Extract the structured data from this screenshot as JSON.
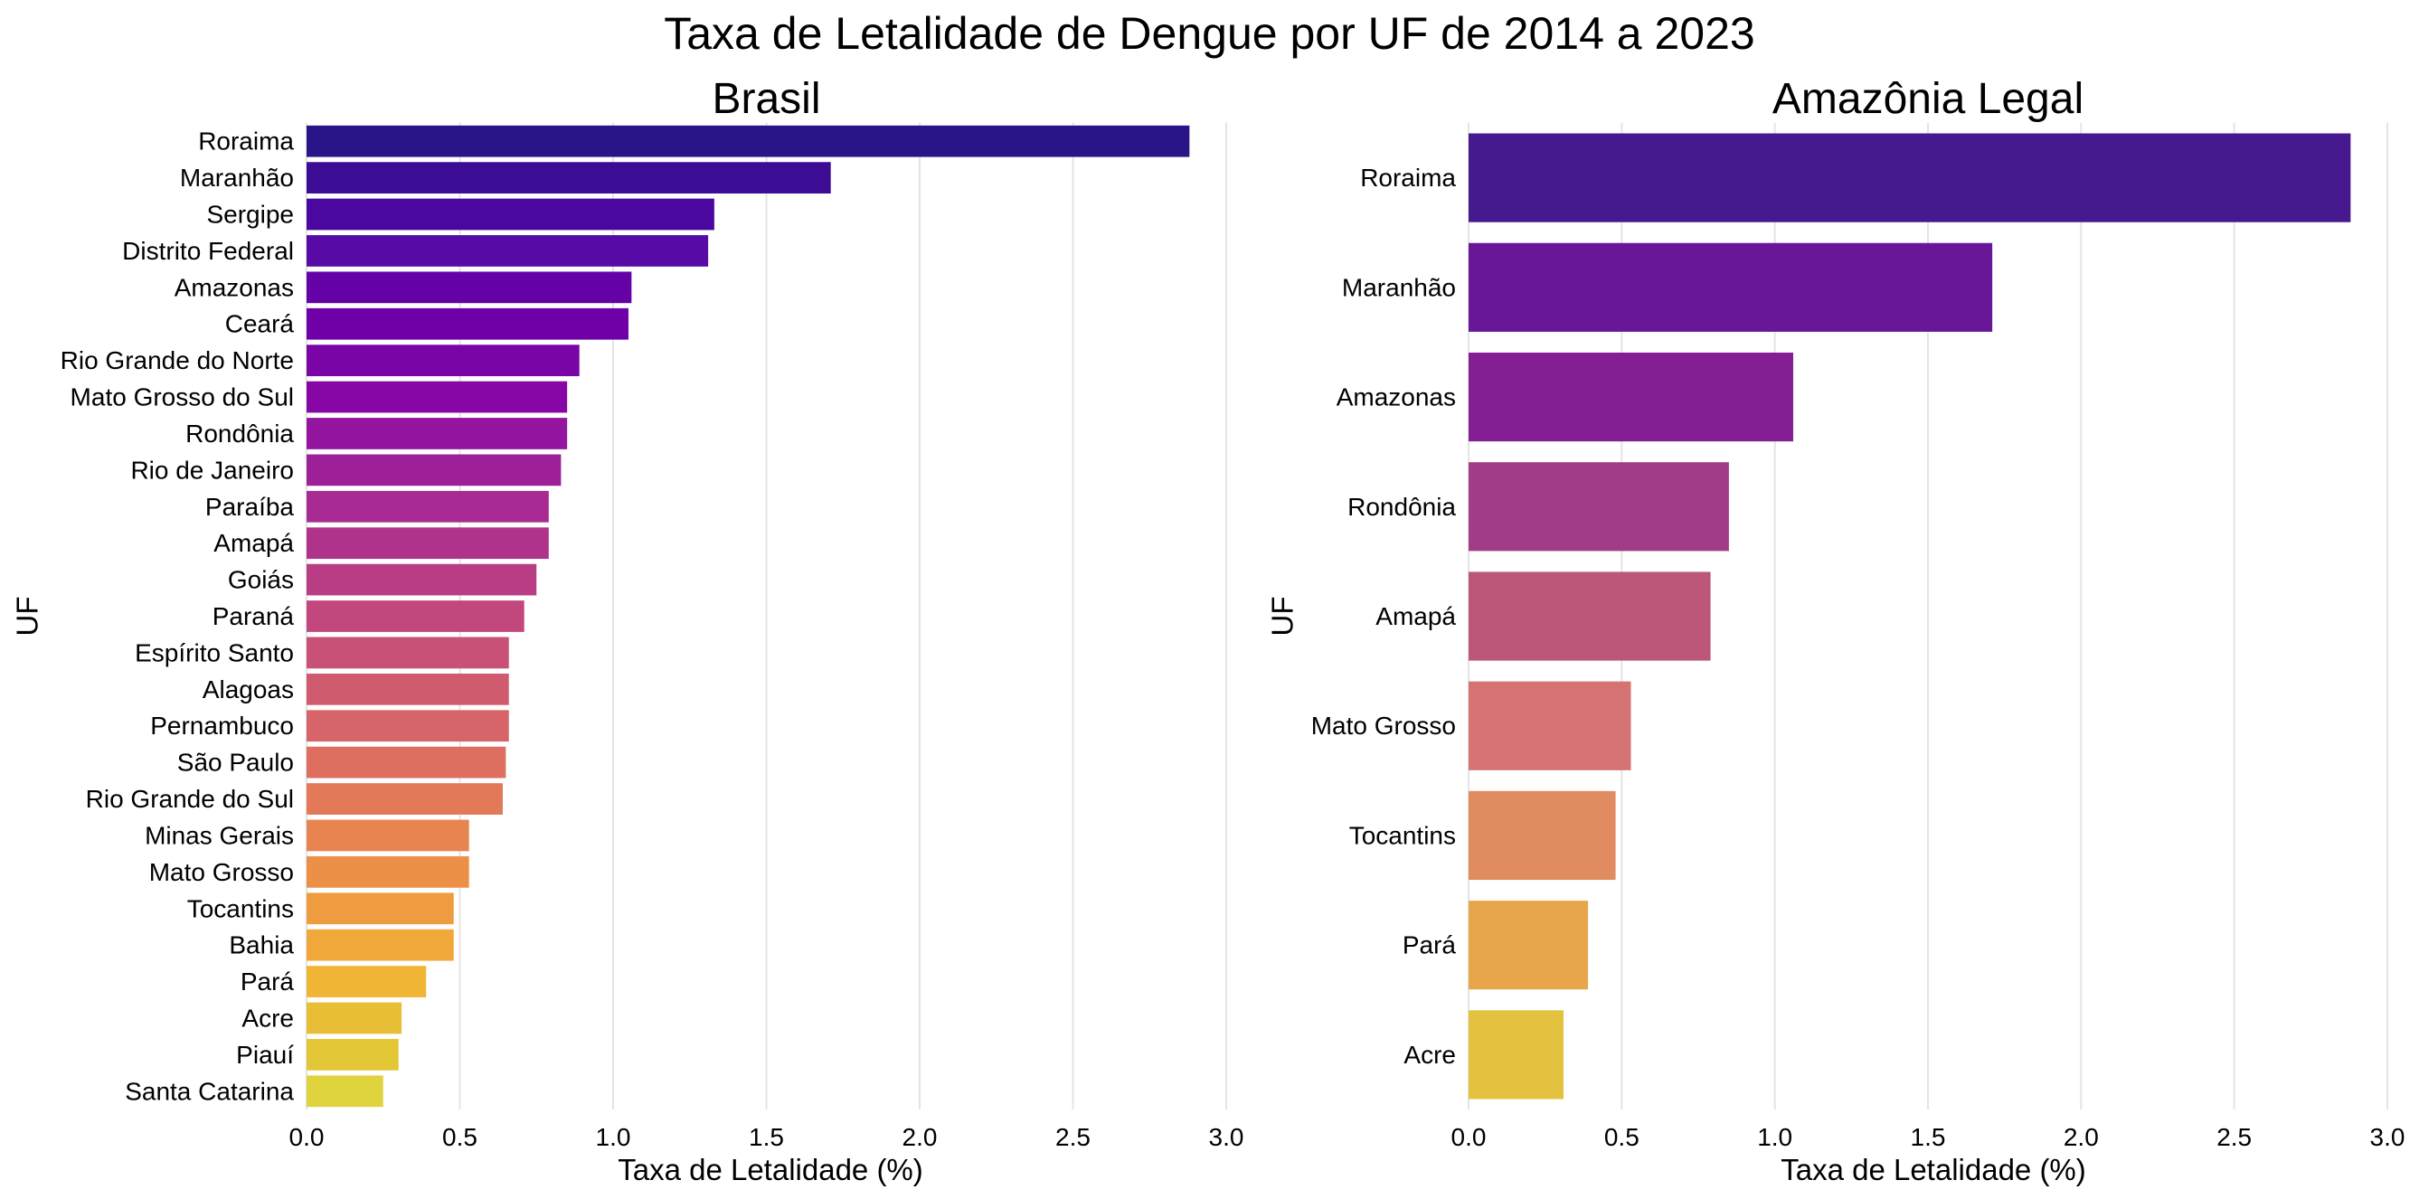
{
  "suptitle": "Taxa de Letalidade de Dengue por UF de 2014 a 2023",
  "chart_data": [
    {
      "type": "bar",
      "orientation": "horizontal",
      "title": "Brasil",
      "xlabel": "Taxa de Letalidade (%)",
      "ylabel": "UF",
      "xlim": [
        0,
        3.0
      ],
      "xticks": [
        "0.0",
        "0.5",
        "1.0",
        "1.5",
        "2.0",
        "2.5",
        "3.0"
      ],
      "grid": "vertical",
      "legend": "none",
      "palette": "plasma",
      "categories": [
        "Roraima",
        "Maranhão",
        "Sergipe",
        "Distrito Federal",
        "Amazonas",
        "Ceará",
        "Rio Grande do Norte",
        "Mato Grosso do Sul",
        "Rondônia",
        "Rio de Janeiro",
        "Paraíba",
        "Amapá",
        "Goiás",
        "Paraná",
        "Espírito Santo",
        "Alagoas",
        "Pernambuco",
        "São Paulo",
        "Rio Grande do Sul",
        "Minas Gerais",
        "Mato Grosso",
        "Tocantins",
        "Bahia",
        "Pará",
        "Acre",
        "Piauí",
        "Santa Catarina"
      ],
      "values": [
        2.88,
        1.71,
        1.33,
        1.31,
        1.06,
        1.05,
        0.89,
        0.85,
        0.85,
        0.83,
        0.79,
        0.79,
        0.75,
        0.71,
        0.66,
        0.66,
        0.66,
        0.65,
        0.64,
        0.53,
        0.53,
        0.48,
        0.48,
        0.39,
        0.31,
        0.3,
        0.25
      ],
      "colors": [
        "#2a1487",
        "#3c0c94",
        "#4a08a0",
        "#570aa6",
        "#6401a7",
        "#6f00a8",
        "#7b04a7",
        "#8707a6",
        "#9315a0",
        "#9d2099",
        "#a72b93",
        "#b0338b",
        "#b93d85",
        "#c2477d",
        "#c95176",
        "#d05b6f",
        "#d66468",
        "#dd6e60",
        "#e27958",
        "#e8844f",
        "#ec8f47",
        "#ef9c40",
        "#f0a83b",
        "#f1b536",
        "#e7be36",
        "#e3c736",
        "#dfd33e"
      ]
    },
    {
      "type": "bar",
      "orientation": "horizontal",
      "title": "Amazônia Legal",
      "xlabel": "Taxa de Letalidade (%)",
      "ylabel": "UF",
      "xlim": [
        0,
        3.0
      ],
      "xticks": [
        "0.0",
        "0.5",
        "1.0",
        "1.5",
        "2.0",
        "2.5",
        "3.0"
      ],
      "grid": "vertical",
      "legend": "none",
      "palette": "plasma",
      "categories": [
        "Roraima",
        "Maranhão",
        "Amazonas",
        "Rondônia",
        "Amapá",
        "Mato Grosso",
        "Tocantins",
        "Pará",
        "Acre"
      ],
      "values": [
        2.88,
        1.71,
        1.06,
        0.85,
        0.79,
        0.53,
        0.48,
        0.39,
        0.31
      ],
      "colors": [
        "#461a8e",
        "#671797",
        "#831f93",
        "#a13c86",
        "#bd577a",
        "#d57272",
        "#e08b60",
        "#e8a64b",
        "#e2c23e"
      ]
    }
  ]
}
